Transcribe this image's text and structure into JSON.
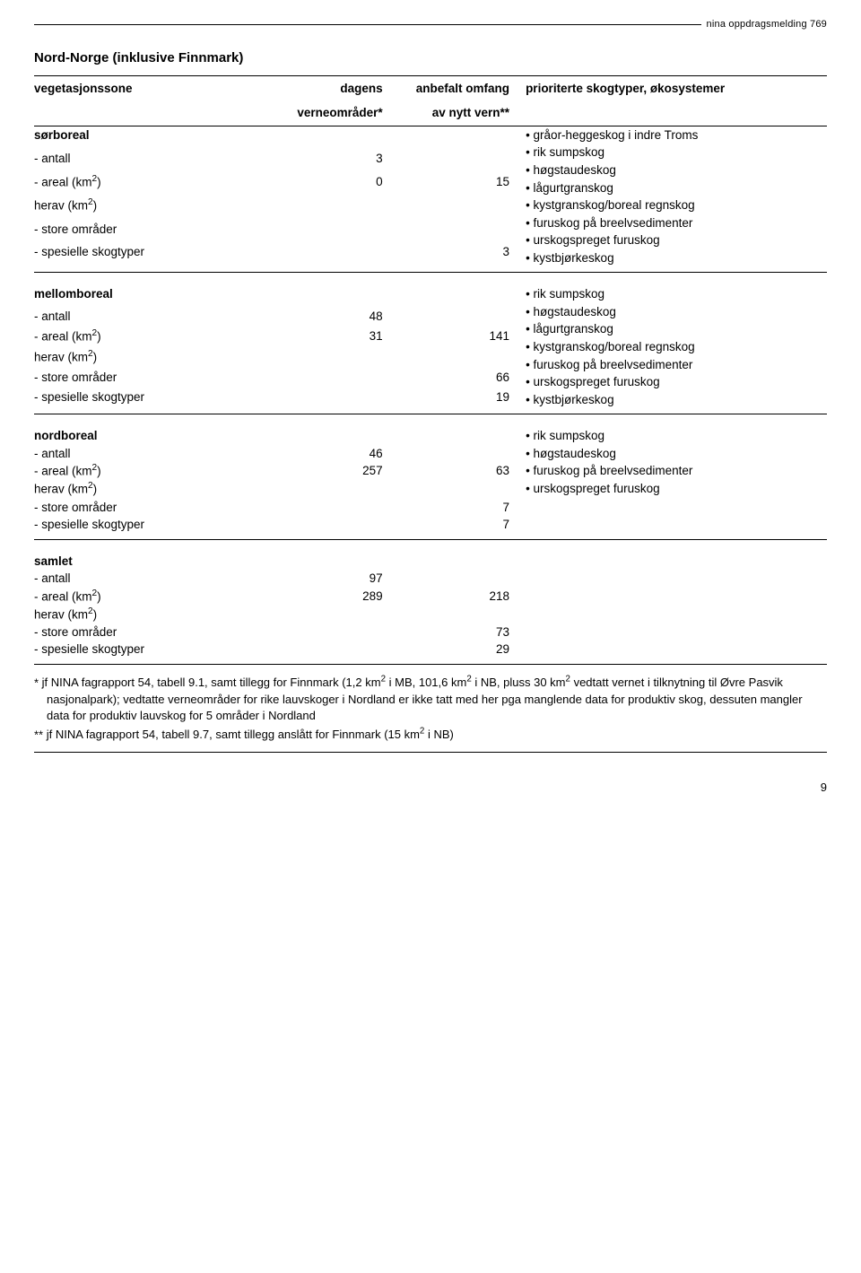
{
  "header_label": "nina oppdragsmelding 769",
  "title": "Nord-Norge (inklusive Finnmark)",
  "columns": {
    "c1": "vegetasjonssone",
    "c2_l1": "dagens",
    "c2_l2": "verneområder*",
    "c3_l1": "anbefalt omfang",
    "c3_l2": "av nytt vern**",
    "c4": "prioriterte skogtyper, økosystemer"
  },
  "sections": [
    {
      "name": "sørboreal",
      "rows": [
        {
          "label": "- antall",
          "v1": "3",
          "v2": ""
        },
        {
          "label": "- areal (km²)",
          "v1": "0",
          "v2": "15"
        },
        {
          "label": "herav (km²)",
          "v1": "",
          "v2": ""
        },
        {
          "label": "- store områder",
          "v1": "",
          "v2": ""
        },
        {
          "label": "- spesielle skogtyper",
          "v1": "",
          "v2": "3"
        }
      ],
      "bullets": [
        "gråor-heggeskog i indre Troms",
        "rik sumpskog",
        "høgstaudeskog",
        "lågurtgranskog",
        "kystgranskog/boreal regnskog",
        "furuskog på breelvsedimenter",
        "urskogspreget furuskog",
        "kystbjørkeskog"
      ]
    },
    {
      "name": "mellomboreal",
      "rows": [
        {
          "label": "- antall",
          "v1": "48",
          "v2": ""
        },
        {
          "label": "- areal (km²)",
          "v1": "31",
          "v2": "141"
        },
        {
          "label": "herav (km²)",
          "v1": "",
          "v2": ""
        },
        {
          "label": "- store områder",
          "v1": "",
          "v2": "66"
        },
        {
          "label": "- spesielle skogtyper",
          "v1": "",
          "v2": "19"
        }
      ],
      "bullets": [
        "rik sumpskog",
        "høgstaudeskog",
        "lågurtgranskog",
        "kystgranskog/boreal regnskog",
        "furuskog på breelvsedimenter",
        "urskogspreget furuskog",
        "kystbjørkeskog"
      ]
    },
    {
      "name": "nordboreal",
      "rows": [
        {
          "label": "- antall",
          "v1": "46",
          "v2": ""
        },
        {
          "label": "- areal (km²)",
          "v1": "257",
          "v2": "63"
        },
        {
          "label": "herav (km²)",
          "v1": "",
          "v2": ""
        },
        {
          "label": "- store områder",
          "v1": "",
          "v2": "7"
        },
        {
          "label": "- spesielle skogtyper",
          "v1": "",
          "v2": "7"
        }
      ],
      "bullets": [
        "rik sumpskog",
        "høgstaudeskog",
        "furuskog på breelvsedimenter",
        "urskogspreget furuskog"
      ]
    },
    {
      "name": "samlet",
      "rows": [
        {
          "label": "- antall",
          "v1": "97",
          "v2": ""
        },
        {
          "label": "- areal (km²)",
          "v1": "289",
          "v2": "218"
        },
        {
          "label": "herav (km²)",
          "v1": "",
          "v2": ""
        },
        {
          "label": "- store områder",
          "v1": "",
          "v2": "73"
        },
        {
          "label": "- spesielle skogtyper",
          "v1": "",
          "v2": "29"
        }
      ],
      "bullets": []
    }
  ],
  "footnote1_prefix": "*  ",
  "footnote1": "jf NINA fagrapport 54, tabell 9.1, samt tillegg for Finnmark (1,2 km² i MB, 101,6 km² i NB, pluss 30 km² vedtatt vernet i tilknytning til Øvre Pasvik nasjonalpark); vedtatte verneområder for rike lauvskoger i Nordland er ikke tatt med her pga manglende data for produktiv skog, dessuten mangler data for produktiv lauvskog for 5 områder i Nordland",
  "footnote2_prefix": "** ",
  "footnote2": "jf NINA fagrapport 54, tabell 9.7, samt tillegg anslått for Finnmark (15 km² i NB)",
  "page_number": "9"
}
